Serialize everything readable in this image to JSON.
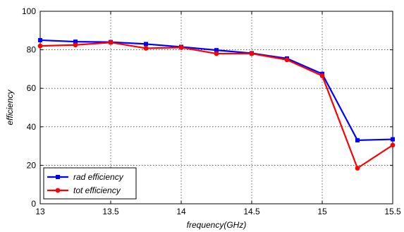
{
  "chart_data": {
    "type": "line",
    "title": "",
    "xlabel": "frequency(GHz)",
    "ylabel": "efficiency",
    "xlim": [
      13,
      15.5
    ],
    "ylim": [
      0,
      100
    ],
    "x_ticks": [
      13,
      13.5,
      14,
      14.5,
      15,
      15.5
    ],
    "y_ticks": [
      0,
      20,
      40,
      60,
      80,
      100
    ],
    "x_tick_labels": [
      "13",
      "13.5",
      "14",
      "14.5",
      "15",
      "15.5"
    ],
    "y_tick_labels": [
      "0",
      "20",
      "40",
      "60",
      "80",
      "100"
    ],
    "grid": true,
    "legend_position": "bottom-left",
    "x": [
      13,
      13.25,
      13.5,
      13.75,
      14,
      14.25,
      14.5,
      14.75,
      15,
      15.25,
      15.5
    ],
    "series": [
      {
        "name": "rad efficiency",
        "color": "#0000ff",
        "marker": "square",
        "values": [
          85,
          84.2,
          84,
          83,
          81.5,
          79.8,
          78.2,
          75.5,
          67.5,
          33,
          33.5
        ]
      },
      {
        "name": "tot efficiency",
        "color": "#ff0000",
        "marker": "circle",
        "values": [
          82,
          82.5,
          83.8,
          80.8,
          81.2,
          78,
          78,
          74.8,
          66.5,
          18.5,
          30.5
        ]
      }
    ]
  }
}
